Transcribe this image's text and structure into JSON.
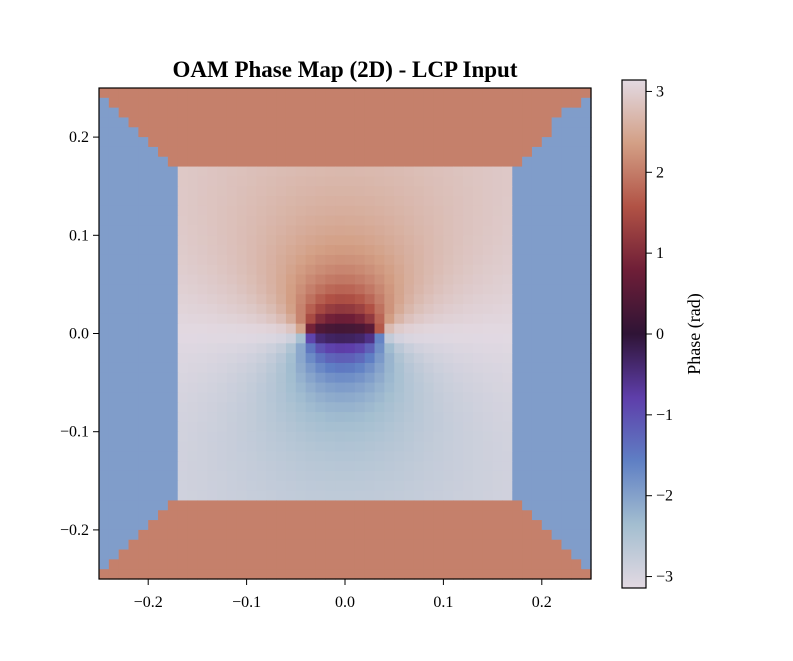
{
  "chart_data": {
    "type": "heatmap",
    "title": "OAM Phase Map (2D) - LCP Input",
    "xlabel": "",
    "ylabel": "",
    "xlim": [
      -0.25,
      0.25
    ],
    "ylim": [
      -0.25,
      0.25
    ],
    "grid_size": 50,
    "x_ticks": [
      -0.2,
      -0.1,
      0.0,
      0.1,
      0.2
    ],
    "x_tick_labels": [
      "−0.2",
      "−0.1",
      "0.0",
      "0.1",
      "0.2"
    ],
    "y_ticks": [
      0.2,
      0.1,
      0.0,
      -0.1,
      -0.2
    ],
    "y_tick_labels": [
      "0.2",
      "0.1",
      "0.0",
      "−0.1",
      "−0.2"
    ],
    "field": {
      "quantity": "phase",
      "unit": "rad",
      "vortex_x_offsets": [
        -0.04,
        0.035
      ],
      "vortex_y": 0.0,
      "zone_boundary": 0.17,
      "outer_zone_phase_pi": [
        0.65,
        0.5
      ]
    },
    "colorbar": {
      "label": "Phase (rad)",
      "colormap": "twilight_shifted",
      "vmin": -3.14159,
      "vmax": 3.14159,
      "ticks": [
        3,
        2,
        1,
        0,
        -1,
        -2,
        -3
      ],
      "tick_labels": [
        "3",
        "2",
        "1",
        "0",
        "−1",
        "−2",
        "−3"
      ],
      "colors": [
        "#e2d9e2",
        "#a3bed0",
        "#5f7fc4",
        "#5e3eaa",
        "#2f1436",
        "#6e1e37",
        "#b15245",
        "#d39f85",
        "#e2d9e2"
      ]
    }
  }
}
